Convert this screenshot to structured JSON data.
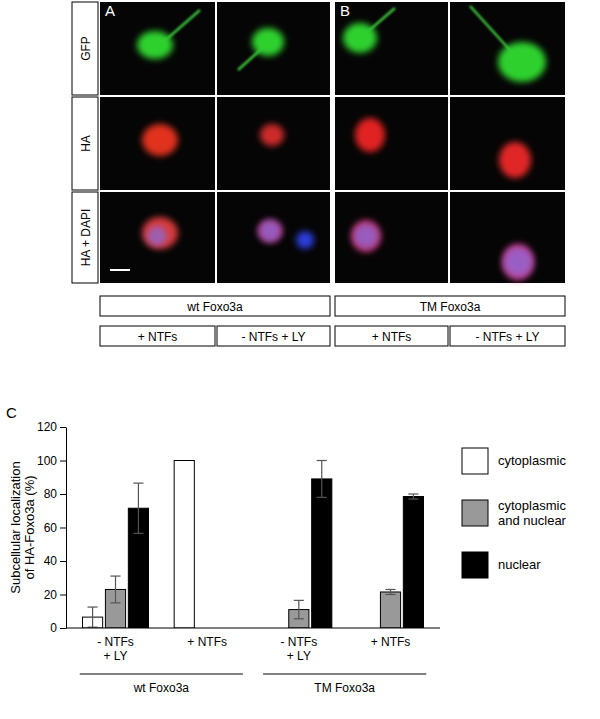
{
  "figure": {
    "panel_labels": [
      "A",
      "B",
      "C"
    ],
    "rows": [
      "GFP",
      "HA",
      "HA + DAPI"
    ],
    "constructs": [
      "wt Foxo3a",
      "TM Foxo3a"
    ],
    "conditions": [
      "+ NTFs",
      "- NTFs + LY"
    ]
  },
  "chart_data": {
    "type": "bar",
    "y_label": "Subcellular localization of HA-Foxo3a (%)",
    "categories": [
      "- NTFs + LY",
      "+ NTFs",
      "- NTFs + LY",
      "+ NTFs"
    ],
    "group_labels": [
      "wt Foxo3a",
      "TM Foxo3a"
    ],
    "series": [
      {
        "name": "cytoplasmic",
        "color": "#ffffff",
        "values": [
          6.5,
          100,
          0,
          0
        ],
        "errors": [
          6,
          null,
          null,
          null
        ]
      },
      {
        "name": "cytoplasmic and nuclear",
        "color": "#999999",
        "values": [
          23,
          0,
          11,
          21.5
        ],
        "errors": [
          8,
          null,
          5.5,
          1.5
        ]
      },
      {
        "name": "nuclear",
        "color": "#000000",
        "values": [
          71.5,
          0,
          89,
          78.5
        ],
        "errors": [
          15,
          null,
          11,
          1.5
        ]
      }
    ],
    "ylim": [
      0,
      120
    ],
    "yticks": [
      0,
      20,
      40,
      60,
      80,
      100,
      120
    ],
    "legend": "right",
    "grid": false
  }
}
